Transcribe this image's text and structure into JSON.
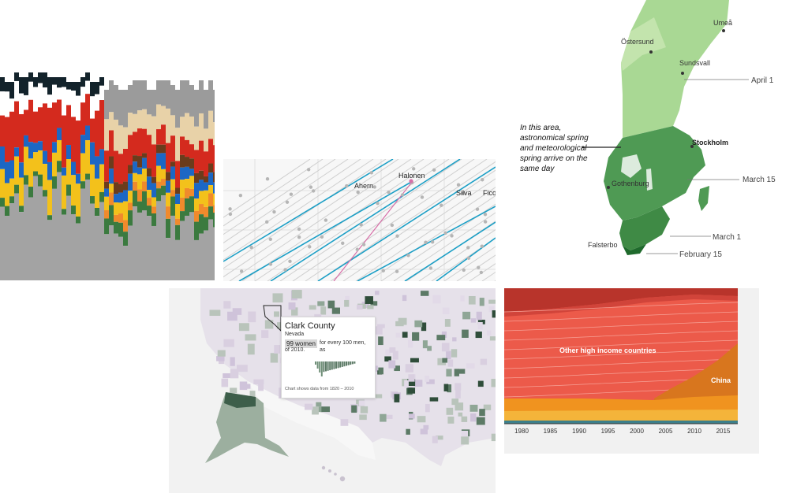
{
  "colors": {
    "stack": [
      "#13232b",
      "#ffffff",
      "#d42a1e",
      "#1c67c4",
      "#f3c11b",
      "#3b7a3f",
      "#8a8a8a",
      "#f08a2c",
      "#a3a3a3",
      "#6b3c1c",
      "#e8d2a8",
      "#7a7a7a"
    ],
    "teal_line": "#1c9fc6",
    "grey_line": "#cfcfcf",
    "pink": "#d76fa8",
    "sweden_dark": "#3f8f4f",
    "sweden_mid": "#5fae5d",
    "sweden_light": "#9fd38d",
    "map_land": "#e3dfe7",
    "map_green": "#3d5e4a",
    "area_red": "#ec5a4a",
    "area_orange": "#e0801f"
  },
  "panel_timeline": {
    "names": [
      "Ahern",
      "Halonen",
      "Silva",
      "Fico"
    ]
  },
  "panel_sweden": {
    "cities": [
      "Östersund",
      "Umeå",
      "Sundsvall",
      "Stockholm",
      "Gothenburg",
      "Falsterbo"
    ],
    "dates": [
      "April 1",
      "March 15",
      "March 1",
      "February 15"
    ],
    "annotation": "In this area, astronomical spring and meteorological spring arrive on the same day"
  },
  "panel_uscounty": {
    "tooltip": {
      "title": "Clark County",
      "state": "Nevada",
      "highlight": "99 women",
      "rest": "for every 100 men, as",
      "rest2": "of 2010.",
      "note": "Chart shows data from 1820 – 2010"
    }
  },
  "panel_income": {
    "labels": {
      "other_high": "Other high income countries",
      "china": "China"
    },
    "years": [
      "1980",
      "1985",
      "1990",
      "1995",
      "2000",
      "2005",
      "2010",
      "2015"
    ]
  }
}
